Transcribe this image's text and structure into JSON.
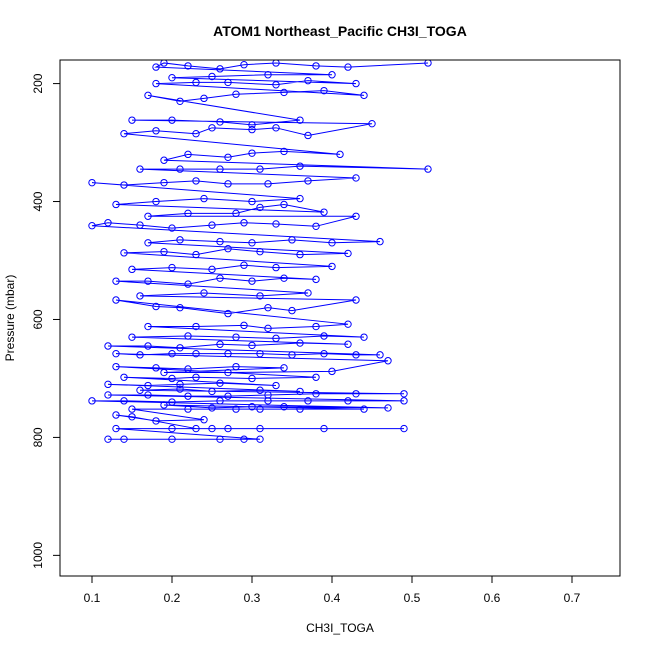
{
  "chart_data": {
    "type": "line",
    "title": "ATOM1 Northeast_Pacific CH3I_TOGA",
    "xlabel": "CH3I_TOGA",
    "ylabel": "Pressure (mbar)",
    "xlim": [
      0.06,
      0.76
    ],
    "ylim": [
      1035,
      160
    ],
    "y_reversed": true,
    "x_ticks": [
      0.1,
      0.2,
      0.3,
      0.4,
      0.5,
      0.6,
      0.7
    ],
    "x_tick_labels": [
      "0.1",
      "0.2",
      "0.3",
      "0.4",
      "0.5",
      "0.6",
      "0.7"
    ],
    "y_ticks": [
      200,
      400,
      600,
      800,
      1000
    ],
    "y_tick_labels": [
      "200",
      "400",
      "600",
      "800",
      "1000"
    ],
    "grid": false,
    "legend": "none",
    "series": [
      {
        "color": "#0000ff",
        "marker": "open-circle",
        "line": true,
        "points": [
          [
            0.12,
            803
          ],
          [
            0.14,
            803
          ],
          [
            0.2,
            803
          ],
          [
            0.26,
            803
          ],
          [
            0.29,
            803
          ],
          [
            0.31,
            803
          ],
          [
            0.13,
            785
          ],
          [
            0.27,
            785
          ],
          [
            0.31,
            785
          ],
          [
            0.39,
            785
          ],
          [
            0.49,
            785
          ],
          [
            0.25,
            785
          ],
          [
            0.2,
            785
          ],
          [
            0.23,
            785
          ],
          [
            0.15,
            765
          ],
          [
            0.13,
            762
          ],
          [
            0.18,
            772
          ],
          [
            0.24,
            770
          ],
          [
            0.15,
            752
          ],
          [
            0.22,
            752
          ],
          [
            0.28,
            752
          ],
          [
            0.31,
            752
          ],
          [
            0.36,
            752
          ],
          [
            0.44,
            752
          ],
          [
            0.19,
            745
          ],
          [
            0.25,
            750
          ],
          [
            0.3,
            748
          ],
          [
            0.34,
            748
          ],
          [
            0.47,
            750
          ],
          [
            0.1,
            738
          ],
          [
            0.14,
            738
          ],
          [
            0.2,
            740
          ],
          [
            0.26,
            738
          ],
          [
            0.32,
            738
          ],
          [
            0.37,
            738
          ],
          [
            0.42,
            738
          ],
          [
            0.49,
            738
          ],
          [
            0.12,
            728
          ],
          [
            0.17,
            728
          ],
          [
            0.22,
            730
          ],
          [
            0.27,
            730
          ],
          [
            0.32,
            728
          ],
          [
            0.38,
            726
          ],
          [
            0.43,
            726
          ],
          [
            0.49,
            726
          ],
          [
            0.16,
            720
          ],
          [
            0.21,
            718
          ],
          [
            0.25,
            722
          ],
          [
            0.31,
            720
          ],
          [
            0.36,
            722
          ],
          [
            0.12,
            710
          ],
          [
            0.17,
            712
          ],
          [
            0.21,
            710
          ],
          [
            0.26,
            708
          ],
          [
            0.33,
            712
          ],
          [
            0.14,
            698
          ],
          [
            0.2,
            700
          ],
          [
            0.23,
            698
          ],
          [
            0.3,
            700
          ],
          [
            0.38,
            698
          ],
          [
            0.13,
            680
          ],
          [
            0.18,
            682
          ],
          [
            0.22,
            684
          ],
          [
            0.28,
            680
          ],
          [
            0.34,
            682
          ],
          [
            0.19,
            690
          ],
          [
            0.27,
            690
          ],
          [
            0.4,
            688
          ],
          [
            0.47,
            670
          ],
          [
            0.13,
            658
          ],
          [
            0.16,
            660
          ],
          [
            0.2,
            658
          ],
          [
            0.23,
            658
          ],
          [
            0.27,
            658
          ],
          [
            0.31,
            658
          ],
          [
            0.35,
            660
          ],
          [
            0.39,
            658
          ],
          [
            0.43,
            660
          ],
          [
            0.46,
            660
          ],
          [
            0.12,
            645
          ],
          [
            0.17,
            645
          ],
          [
            0.21,
            648
          ],
          [
            0.26,
            642
          ],
          [
            0.3,
            644
          ],
          [
            0.36,
            640
          ],
          [
            0.42,
            642
          ],
          [
            0.15,
            630
          ],
          [
            0.22,
            628
          ],
          [
            0.28,
            630
          ],
          [
            0.33,
            632
          ],
          [
            0.39,
            628
          ],
          [
            0.44,
            630
          ],
          [
            0.17,
            612
          ],
          [
            0.23,
            612
          ],
          [
            0.29,
            610
          ],
          [
            0.32,
            615
          ],
          [
            0.38,
            612
          ],
          [
            0.42,
            608
          ],
          [
            0.13,
            567
          ],
          [
            0.18,
            578
          ],
          [
            0.21,
            580
          ],
          [
            0.27,
            590
          ],
          [
            0.32,
            580
          ],
          [
            0.35,
            585
          ],
          [
            0.43,
            567
          ],
          [
            0.16,
            560
          ],
          [
            0.24,
            555
          ],
          [
            0.31,
            560
          ],
          [
            0.37,
            555
          ],
          [
            0.13,
            535
          ],
          [
            0.17,
            535
          ],
          [
            0.22,
            540
          ],
          [
            0.26,
            530
          ],
          [
            0.3,
            535
          ],
          [
            0.34,
            530
          ],
          [
            0.38,
            532
          ],
          [
            0.15,
            515
          ],
          [
            0.2,
            512
          ],
          [
            0.25,
            515
          ],
          [
            0.29,
            508
          ],
          [
            0.33,
            512
          ],
          [
            0.4,
            510
          ],
          [
            0.14,
            487
          ],
          [
            0.19,
            485
          ],
          [
            0.23,
            490
          ],
          [
            0.27,
            480
          ],
          [
            0.31,
            485
          ],
          [
            0.36,
            490
          ],
          [
            0.42,
            488
          ],
          [
            0.17,
            470
          ],
          [
            0.21,
            465
          ],
          [
            0.26,
            468
          ],
          [
            0.3,
            470
          ],
          [
            0.35,
            465
          ],
          [
            0.4,
            470
          ],
          [
            0.46,
            468
          ],
          [
            0.1,
            441
          ],
          [
            0.12,
            436
          ],
          [
            0.16,
            440
          ],
          [
            0.2,
            445
          ],
          [
            0.25,
            440
          ],
          [
            0.29,
            436
          ],
          [
            0.33,
            438
          ],
          [
            0.38,
            442
          ],
          [
            0.43,
            425
          ],
          [
            0.17,
            425
          ],
          [
            0.22,
            420
          ],
          [
            0.28,
            420
          ],
          [
            0.31,
            410
          ],
          [
            0.34,
            405
          ],
          [
            0.39,
            418
          ],
          [
            0.13,
            405
          ],
          [
            0.18,
            400
          ],
          [
            0.24,
            395
          ],
          [
            0.3,
            400
          ],
          [
            0.36,
            395
          ],
          [
            0.1,
            368
          ],
          [
            0.14,
            372
          ],
          [
            0.19,
            368
          ],
          [
            0.23,
            365
          ],
          [
            0.27,
            370
          ],
          [
            0.32,
            370
          ],
          [
            0.37,
            365
          ],
          [
            0.43,
            360
          ],
          [
            0.16,
            345
          ],
          [
            0.21,
            345
          ],
          [
            0.26,
            345
          ],
          [
            0.31,
            345
          ],
          [
            0.36,
            340
          ],
          [
            0.52,
            345
          ],
          [
            0.19,
            330
          ],
          [
            0.22,
            320
          ],
          [
            0.27,
            325
          ],
          [
            0.3,
            318
          ],
          [
            0.34,
            315
          ],
          [
            0.41,
            320
          ],
          [
            0.14,
            285
          ],
          [
            0.18,
            280
          ],
          [
            0.23,
            285
          ],
          [
            0.25,
            275
          ],
          [
            0.3,
            278
          ],
          [
            0.33,
            275
          ],
          [
            0.37,
            288
          ],
          [
            0.45,
            268
          ],
          [
            0.15,
            262
          ],
          [
            0.2,
            262
          ],
          [
            0.26,
            265
          ],
          [
            0.3,
            270
          ],
          [
            0.36,
            262
          ],
          [
            0.17,
            220
          ],
          [
            0.21,
            230
          ],
          [
            0.24,
            225
          ],
          [
            0.28,
            218
          ],
          [
            0.34,
            215
          ],
          [
            0.39,
            212
          ],
          [
            0.44,
            220
          ],
          [
            0.18,
            200
          ],
          [
            0.23,
            198
          ],
          [
            0.27,
            198
          ],
          [
            0.33,
            202
          ],
          [
            0.37,
            195
          ],
          [
            0.43,
            200
          ],
          [
            0.2,
            190
          ],
          [
            0.25,
            188
          ],
          [
            0.32,
            185
          ],
          [
            0.4,
            185
          ],
          [
            0.18,
            172
          ],
          [
            0.19,
            165
          ],
          [
            0.22,
            170
          ],
          [
            0.26,
            175
          ],
          [
            0.29,
            168
          ],
          [
            0.33,
            165
          ],
          [
            0.38,
            170
          ],
          [
            0.42,
            172
          ],
          [
            0.52,
            165
          ]
        ]
      }
    ]
  }
}
